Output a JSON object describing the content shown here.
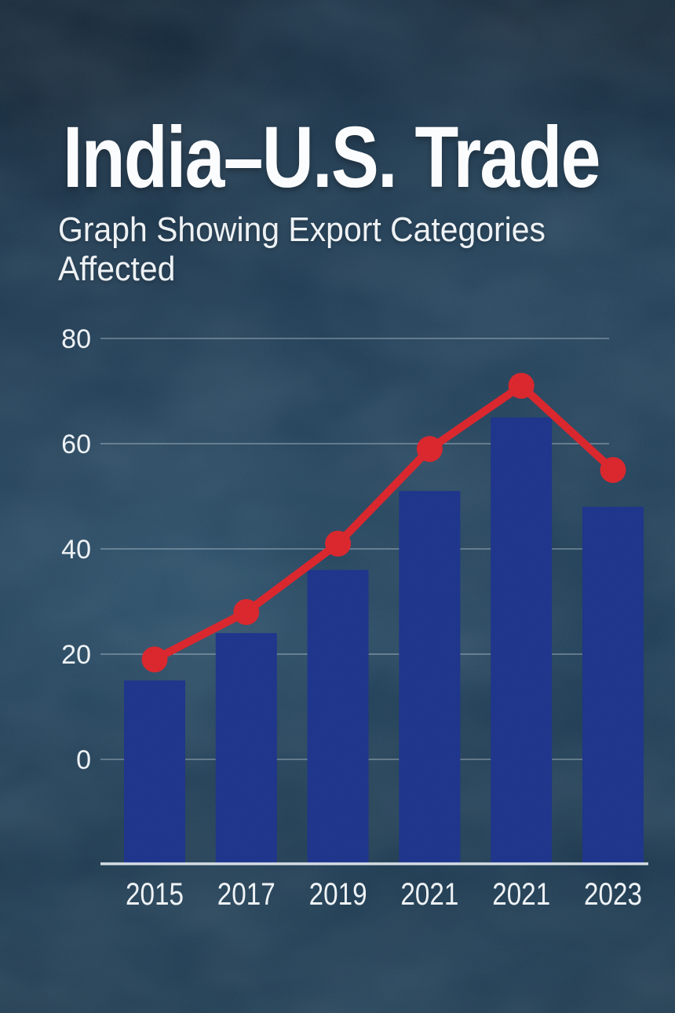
{
  "page": {
    "title": "India–U.S. Trade",
    "subtitle": "Graph Showing Export Categories Affected"
  },
  "chart_data": {
    "type": "bar",
    "title": "India–U.S. Trade",
    "subtitle": "Graph Showing Export Categories Affected",
    "categories": [
      "2015",
      "2017",
      "2019",
      "2021",
      "2021",
      "2023"
    ],
    "series": [
      {
        "name": "export-bars",
        "type": "bar",
        "values": [
          15,
          24,
          36,
          51,
          65,
          48
        ]
      },
      {
        "name": "trend-line",
        "type": "line",
        "values": [
          19,
          28,
          41,
          59,
          71,
          55
        ]
      }
    ],
    "yticks": [
      80,
      60,
      40,
      20,
      0
    ],
    "ylim": [
      0,
      80
    ],
    "baseline_value": -20,
    "grid": true,
    "legend": false,
    "xlabel": "",
    "ylabel": ""
  },
  "colors": {
    "background": "#102940",
    "bar": "#162e87",
    "line": "#d81f26",
    "grid": "#c9d6de",
    "axis": "#e2e9ee",
    "text": "#eef2f5"
  }
}
